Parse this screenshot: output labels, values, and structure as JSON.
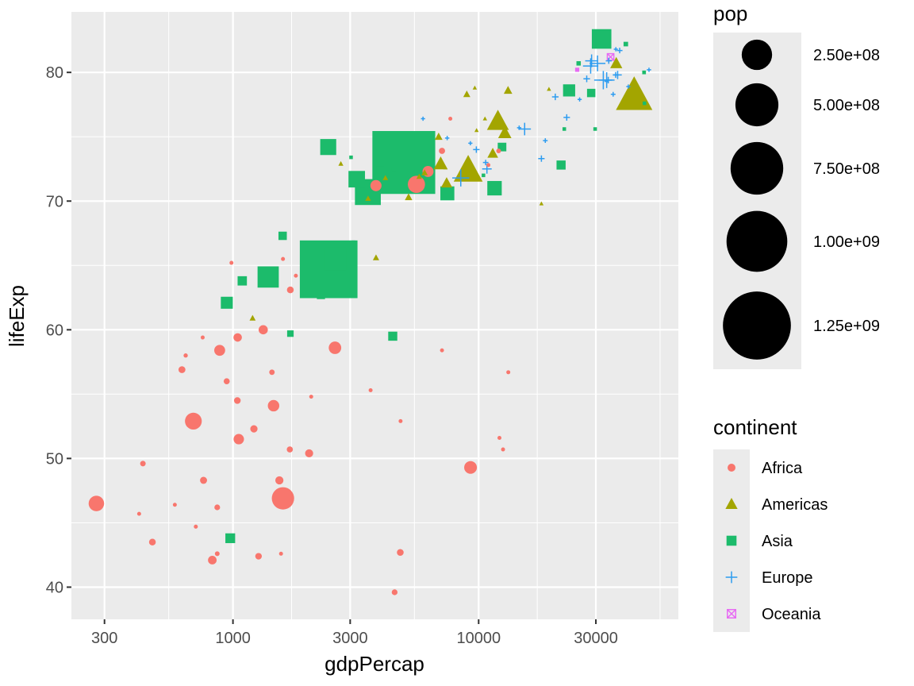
{
  "chart_data": {
    "type": "scatter",
    "title": "",
    "xlabel": "gdpPercap",
    "ylabel": "lifeExp",
    "x_scale": "log10",
    "xlim": [
      220,
      65000
    ],
    "ylim": [
      37.5,
      84.7
    ],
    "x_ticks": [
      300,
      1000,
      3000,
      10000,
      30000
    ],
    "x_tick_labels": [
      "300",
      "1000",
      "3000",
      "10000",
      "30000"
    ],
    "y_ticks": [
      40,
      50,
      60,
      70,
      80
    ],
    "y_tick_labels": [
      "40",
      "50",
      "60",
      "70",
      "80"
    ],
    "grid": true,
    "legend_position": "right",
    "size_legend": {
      "title": "pop",
      "breaks": [
        250000000,
        500000000,
        750000000,
        1000000000,
        1250000000
      ],
      "labels": [
        "2.50e+08",
        "5.00e+08",
        "7.50e+08",
        "1.00e+09",
        "1.25e+09"
      ]
    },
    "color_legend": {
      "title": "continent",
      "entries": [
        "Africa",
        "Americas",
        "Asia",
        "Europe",
        "Oceania"
      ]
    },
    "colors": {
      "Africa": "#F8766D",
      "Americas": "#A3A500",
      "Asia": "#1CBB6B",
      "Europe": "#2D9CF0",
      "Oceania": "#E76BF3"
    },
    "shapes": {
      "Africa": "circle",
      "Americas": "triangle",
      "Asia": "square",
      "Europe": "plus",
      "Oceania": "square-x"
    },
    "series": [
      {
        "name": "Africa",
        "points": [
          [
            6223,
            72.3,
            33000000
          ],
          [
            4797,
            42.7,
            12400000
          ],
          [
            1441,
            56.7,
            8100000
          ],
          [
            12570,
            50.7,
            1600000
          ],
          [
            1217,
            52.3,
            14300000
          ],
          [
            430,
            49.6,
            8400000
          ],
          [
            2042,
            50.4,
            17700000
          ],
          [
            706,
            44.7,
            4400000
          ],
          [
            1704,
            50.7,
            10200000
          ],
          [
            986,
            65.2,
            700000
          ],
          [
            278,
            46.5,
            64600000
          ],
          [
            3633,
            55.3,
            3800000
          ],
          [
            1545,
            48.3,
            18000000
          ],
          [
            2082,
            54.8,
            500000
          ],
          [
            5581,
            71.3,
            80300000
          ],
          [
            12154,
            51.6,
            600000
          ],
          [
            642,
            58.0,
            4900000
          ],
          [
            690,
            52.9,
            76500000
          ],
          [
            13206,
            56.7,
            1500000
          ],
          [
            753,
            59.4,
            1700000
          ],
          [
            1328,
            60.0,
            22900000
          ],
          [
            943,
            56.0,
            9900000
          ],
          [
            580,
            46.4,
            1500000
          ],
          [
            1463,
            54.1,
            35600000
          ],
          [
            1569,
            42.6,
            2000000
          ],
          [
            415,
            45.7,
            3200000
          ],
          [
            12057,
            73.9,
            6000000
          ],
          [
            1045,
            59.4,
            19200000
          ],
          [
            759,
            48.3,
            13300000
          ],
          [
            1042,
            54.5,
            12000000
          ],
          [
            1803,
            64.2,
            3300000
          ],
          [
            10957,
            72.8,
            1300000
          ],
          [
            3820,
            71.2,
            33800000
          ],
          [
            824,
            42.1,
            20000000
          ],
          [
            4811,
            52.9,
            2100000
          ],
          [
            620,
            56.9,
            12900000
          ],
          [
            1598,
            46.9,
            135000000
          ],
          [
            7670,
            76.4,
            800000
          ],
          [
            863,
            46.2,
            8900000
          ],
          [
            1598,
            65.5,
            200000
          ],
          [
            1712,
            63.1,
            12300000
          ],
          [
            863,
            42.6,
            6100000
          ],
          [
            4550,
            39.6,
            9100000
          ],
          [
            2602,
            58.6,
            42300000
          ],
          [
            9269,
            49.3,
            43997828
          ],
          [
            1056,
            51.6,
            12000000
          ],
          [
            883,
            58.4,
            32200000
          ],
          [
            7093,
            73.9,
            10300000
          ],
          [
            1056,
            51.5,
            29200000
          ],
          [
            1271,
            42.4,
            11700000
          ],
          [
            470,
            43.5,
            12300000
          ],
          [
            7093,
            58.4,
            700000
          ]
        ]
      },
      {
        "name": "Americas",
        "points": [
          [
            12779,
            75.3,
            40300000
          ],
          [
            3822,
            65.6,
            9100000
          ],
          [
            9066,
            72.4,
            190000000
          ],
          [
            36319,
            80.7,
            33400000
          ],
          [
            13172,
            78.6,
            16300000
          ],
          [
            7007,
            72.9,
            44200000
          ],
          [
            9645,
            78.8,
            4100000
          ],
          [
            8948,
            78.3,
            11400000
          ],
          [
            6025,
            72.2,
            9300000
          ],
          [
            6873,
            75.0,
            13800000
          ],
          [
            5728,
            71.9,
            6900000
          ],
          [
            5186,
            70.3,
            12600000
          ],
          [
            1202,
            60.9,
            8500000
          ],
          [
            3548,
            70.2,
            7500000
          ],
          [
            7321,
            72.6,
            2800000
          ],
          [
            11978,
            76.2,
            108700000
          ],
          [
            2749,
            72.9,
            5700000
          ],
          [
            9809,
            75.5,
            3200000
          ],
          [
            4173,
            71.8,
            6700000
          ],
          [
            7409,
            71.4,
            28700000
          ],
          [
            19329,
            78.7,
            3900000
          ],
          [
            18008,
            69.8,
            1100000
          ],
          [
            42952,
            78.2,
            301100000
          ],
          [
            10611,
            76.4,
            3400000
          ],
          [
            11416,
            73.7,
            26100000
          ]
        ]
      },
      {
        "name": "Asia",
        "points": [
          [
            975,
            43.8,
            31900000
          ],
          [
            29796,
            75.6,
            700000
          ],
          [
            1391,
            64.1,
            150400000
          ],
          [
            1713,
            59.7,
            14100000
          ],
          [
            4959,
            73.0,
            1318700000
          ],
          [
            39725,
            82.2,
            6900000
          ],
          [
            2452,
            64.7,
            1110400000
          ],
          [
            3541,
            70.7,
            223500000
          ],
          [
            11606,
            71.0,
            69500000
          ],
          [
            4471,
            59.5,
            27500000
          ],
          [
            25523,
            80.7,
            6400000
          ],
          [
            31656,
            82.6,
            127500000
          ],
          [
            4519,
            72.5,
            6100000
          ],
          [
            1593,
            67.3,
            23300000
          ],
          [
            23348,
            78.6,
            49000000
          ],
          [
            47307,
            77.6,
            2500000
          ],
          [
            10461,
            72.0,
            3900000
          ],
          [
            12452,
            74.2,
            24800000
          ],
          [
            3096,
            66.8,
            2900000
          ],
          [
            944,
            62.1,
            47800000
          ],
          [
            1091,
            63.8,
            28900000
          ],
          [
            22316,
            75.6,
            3200000
          ],
          [
            2606,
            65.5,
            169300000
          ],
          [
            3190,
            71.7,
            91100000
          ],
          [
            21655,
            72.8,
            27600000
          ],
          [
            47143,
            80.0,
            4600000
          ],
          [
            3970,
            72.4,
            20400000
          ],
          [
            4185,
            74.1,
            19300000
          ],
          [
            28718,
            78.4,
            23200000
          ],
          [
            7458,
            70.6,
            65100000
          ],
          [
            2442,
            74.2,
            85300000
          ],
          [
            3025,
            73.4,
            4000000
          ],
          [
            2281,
            62.7,
            22200000
          ]
        ]
      },
      {
        "name": "Europe",
        "points": [
          [
            5937,
            76.4,
            3600000
          ],
          [
            36126,
            79.8,
            8200000
          ],
          [
            33693,
            79.4,
            10400000
          ],
          [
            7446,
            74.9,
            4600000
          ],
          [
            10681,
            73.0,
            7300000
          ],
          [
            14619,
            75.7,
            4500000
          ],
          [
            22833,
            76.5,
            10200000
          ],
          [
            35278,
            78.3,
            5500000
          ],
          [
            33207,
            79.3,
            5200000
          ],
          [
            30470,
            80.7,
            61100000
          ],
          [
            32170,
            79.4,
            82400000
          ],
          [
            27538,
            79.5,
            10700000
          ],
          [
            18009,
            73.3,
            10000000
          ],
          [
            36181,
            81.8,
            300000
          ],
          [
            40676,
            78.9,
            4100000
          ],
          [
            28570,
            80.5,
            58100000
          ],
          [
            9254,
            74.5,
            700000
          ],
          [
            36798,
            79.8,
            16600000
          ],
          [
            49357,
            80.2,
            4600000
          ],
          [
            15390,
            75.6,
            38500000
          ],
          [
            20510,
            78.1,
            10600000
          ],
          [
            10808,
            72.5,
            22300000
          ],
          [
            9787,
            74.0,
            10200000
          ],
          [
            18678,
            74.7,
            5400000
          ],
          [
            25768,
            77.9,
            2000000
          ],
          [
            28821,
            80.9,
            40400000
          ],
          [
            33860,
            80.9,
            9000000
          ],
          [
            37506,
            81.7,
            7600000
          ],
          [
            8458,
            71.8,
            71200000
          ],
          [
            33203,
            79.4,
            60800000
          ]
        ]
      },
      {
        "name": "Oceania",
        "points": [
          [
            34435,
            81.2,
            20400000
          ],
          [
            25185,
            80.2,
            4100000
          ]
        ]
      }
    ]
  }
}
